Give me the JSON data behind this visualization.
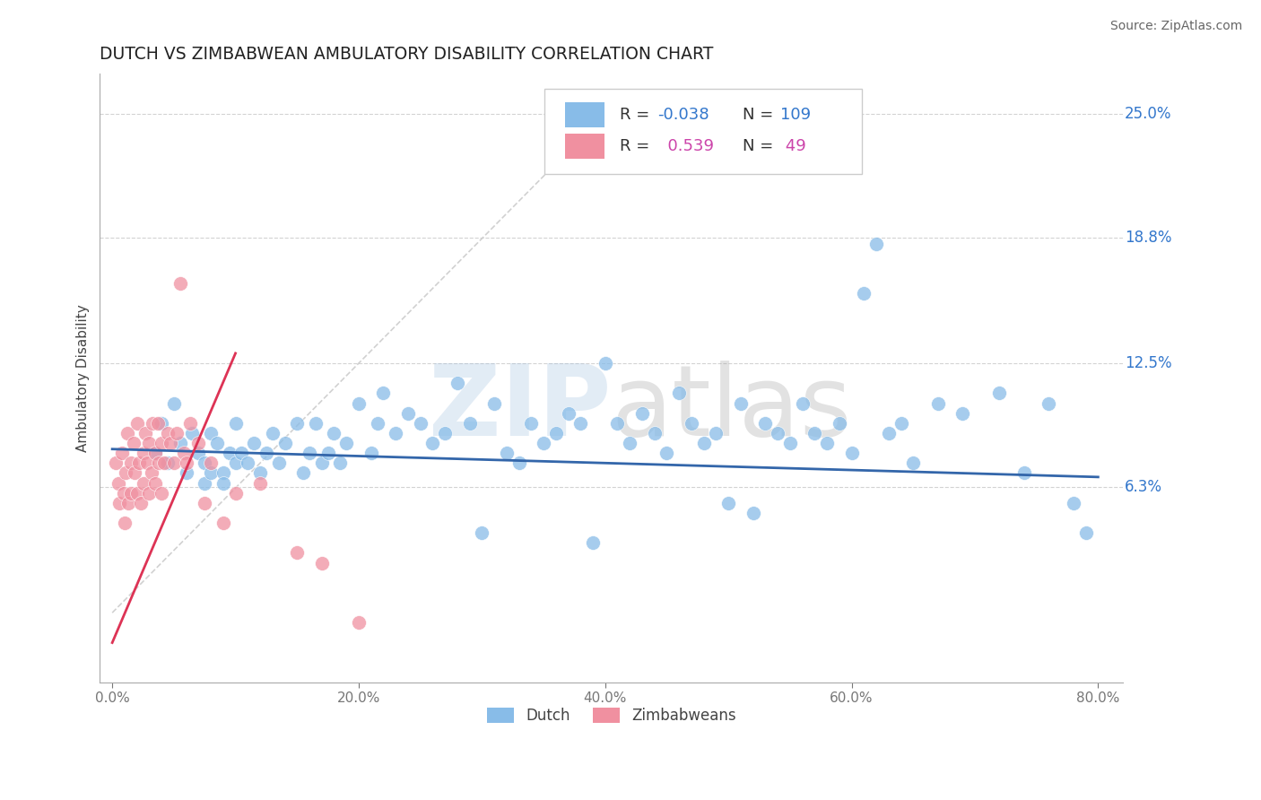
{
  "title": "DUTCH VS ZIMBABWEAN AMBULATORY DISABILITY CORRELATION CHART",
  "source": "Source: ZipAtlas.com",
  "ylabel": "Ambulatory Disability",
  "xlim": [
    -1.0,
    82.0
  ],
  "ylim": [
    -3.5,
    27.0
  ],
  "yticks": [
    6.3,
    12.5,
    18.8,
    25.0
  ],
  "xticks": [
    0.0,
    20.0,
    40.0,
    60.0,
    80.0
  ],
  "xtick_labels": [
    "0.0%",
    "20.0%",
    "40.0%",
    "60.0%",
    "80.0%"
  ],
  "ytick_labels": [
    "6.3%",
    "12.5%",
    "18.8%",
    "25.0%"
  ],
  "dutch_color": "#88bce8",
  "zim_color": "#f090a0",
  "trend_blue": "#3366aa",
  "trend_pink": "#dd3355",
  "grid_color": "#c8c8c8",
  "background_color": "#ffffff",
  "legend_value_blue": "#3377cc",
  "legend_value_pink": "#cc44aa",
  "dutch_scatter_x": [
    3.5,
    4.0,
    4.5,
    5.0,
    5.5,
    6.0,
    6.5,
    7.0,
    7.5,
    7.5,
    8.0,
    8.0,
    8.5,
    9.0,
    9.0,
    9.5,
    10.0,
    10.0,
    10.5,
    11.0,
    11.5,
    12.0,
    12.5,
    13.0,
    13.5,
    14.0,
    15.0,
    15.5,
    16.0,
    16.5,
    17.0,
    17.5,
    18.0,
    18.5,
    19.0,
    20.0,
    21.0,
    21.5,
    22.0,
    23.0,
    24.0,
    25.0,
    26.0,
    27.0,
    28.0,
    29.0,
    30.0,
    31.0,
    32.0,
    33.0,
    34.0,
    35.0,
    36.0,
    37.0,
    38.0,
    39.0,
    40.0,
    41.0,
    42.0,
    43.0,
    44.0,
    45.0,
    46.0,
    47.0,
    48.0,
    49.0,
    50.0,
    51.0,
    52.0,
    53.0,
    54.0,
    55.0,
    56.0,
    57.0,
    58.0,
    59.0,
    60.0,
    61.0,
    62.0,
    63.0,
    64.0,
    65.0,
    67.0,
    69.0,
    72.0,
    74.0,
    76.0,
    78.0,
    79.0
  ],
  "dutch_scatter_y": [
    8.0,
    9.5,
    7.5,
    10.5,
    8.5,
    7.0,
    9.0,
    8.0,
    7.5,
    6.5,
    7.0,
    9.0,
    8.5,
    7.0,
    6.5,
    8.0,
    7.5,
    9.5,
    8.0,
    7.5,
    8.5,
    7.0,
    8.0,
    9.0,
    7.5,
    8.5,
    9.5,
    7.0,
    8.0,
    9.5,
    7.5,
    8.0,
    9.0,
    7.5,
    8.5,
    10.5,
    8.0,
    9.5,
    11.0,
    9.0,
    10.0,
    9.5,
    8.5,
    9.0,
    11.5,
    9.5,
    4.0,
    10.5,
    8.0,
    7.5,
    9.5,
    8.5,
    9.0,
    10.0,
    9.5,
    3.5,
    12.5,
    9.5,
    8.5,
    10.0,
    9.0,
    8.0,
    11.0,
    9.5,
    8.5,
    9.0,
    5.5,
    10.5,
    5.0,
    9.5,
    9.0,
    8.5,
    10.5,
    9.0,
    8.5,
    9.5,
    8.0,
    16.0,
    18.5,
    9.0,
    9.5,
    7.5,
    10.5,
    10.0,
    11.0,
    7.0,
    10.5,
    5.5,
    4.0
  ],
  "zim_scatter_x": [
    0.3,
    0.5,
    0.6,
    0.8,
    0.9,
    1.0,
    1.1,
    1.2,
    1.3,
    1.5,
    1.5,
    1.7,
    1.8,
    2.0,
    2.0,
    2.2,
    2.3,
    2.5,
    2.5,
    2.7,
    2.8,
    3.0,
    3.0,
    3.2,
    3.3,
    3.5,
    3.5,
    3.7,
    3.8,
    4.0,
    4.0,
    4.2,
    4.5,
    4.7,
    5.0,
    5.2,
    5.5,
    5.8,
    6.0,
    6.3,
    7.0,
    7.5,
    8.0,
    9.0,
    10.0,
    12.0,
    15.0,
    17.0,
    20.0
  ],
  "zim_scatter_y": [
    7.5,
    6.5,
    5.5,
    8.0,
    6.0,
    4.5,
    7.0,
    9.0,
    5.5,
    7.5,
    6.0,
    8.5,
    7.0,
    6.0,
    9.5,
    7.5,
    5.5,
    8.0,
    6.5,
    9.0,
    7.5,
    8.5,
    6.0,
    7.0,
    9.5,
    8.0,
    6.5,
    9.5,
    7.5,
    8.5,
    6.0,
    7.5,
    9.0,
    8.5,
    7.5,
    9.0,
    16.5,
    8.0,
    7.5,
    9.5,
    8.5,
    5.5,
    7.5,
    4.5,
    6.0,
    6.5,
    3.0,
    2.5,
    -0.5
  ],
  "pink_trend_x": [
    0.0,
    10.0
  ],
  "pink_trend_y": [
    -1.5,
    13.0
  ],
  "blue_trend_x": [
    0.0,
    80.0
  ],
  "blue_trend_y": [
    8.2,
    6.8
  ],
  "ref_line_x": [
    0.0,
    40.0
  ],
  "ref_line_y": [
    0.0,
    25.0
  ]
}
